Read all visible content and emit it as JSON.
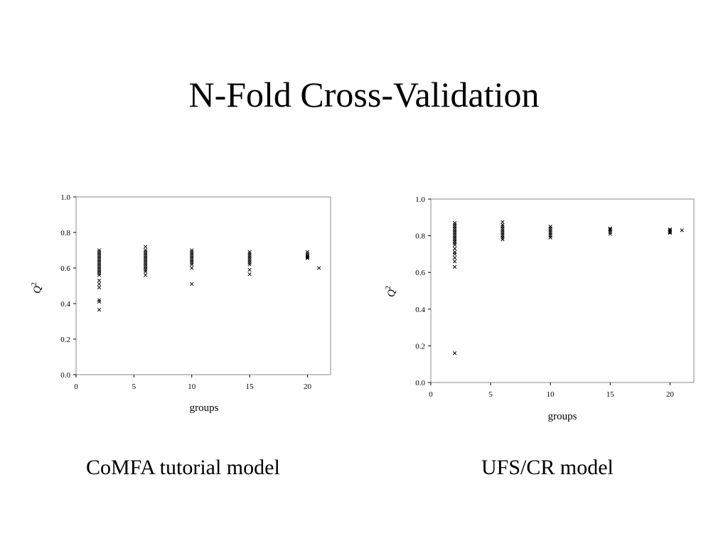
{
  "slide": {
    "title": "N-Fold Cross-Validation",
    "captions": [
      "CoMFA tutorial model",
      "UFS/CR model"
    ]
  },
  "chart_data": [
    {
      "type": "scatter",
      "marker": "x",
      "xlabel": "groups",
      "ylabel": "Q",
      "ylabel_superscript": "2",
      "xlim": [
        0,
        22
      ],
      "ylim": [
        0,
        1
      ],
      "x_ticks": [
        0,
        5,
        10,
        15,
        20
      ],
      "y_ticks": [
        "0.0",
        "0.2",
        "0.4",
        "0.6",
        "0.8",
        "1.0"
      ],
      "grid": false,
      "series": [
        {
          "points": [
            [
              2,
              0.7
            ],
            [
              2,
              0.69
            ],
            [
              2,
              0.68
            ],
            [
              2,
              0.67
            ],
            [
              2,
              0.66
            ],
            [
              2,
              0.65
            ],
            [
              2,
              0.64
            ],
            [
              2,
              0.63
            ],
            [
              2,
              0.62
            ],
            [
              2,
              0.61
            ],
            [
              2,
              0.6
            ],
            [
              2,
              0.59
            ],
            [
              2,
              0.58
            ],
            [
              2,
              0.57
            ],
            [
              2,
              0.56
            ],
            [
              2,
              0.53
            ],
            [
              2,
              0.51
            ],
            [
              2,
              0.49
            ],
            [
              2,
              0.42
            ],
            [
              2,
              0.41
            ],
            [
              2,
              0.365
            ],
            [
              6,
              0.72
            ],
            [
              6,
              0.7
            ],
            [
              6,
              0.69
            ],
            [
              6,
              0.68
            ],
            [
              6,
              0.67
            ],
            [
              6,
              0.66
            ],
            [
              6,
              0.65
            ],
            [
              6,
              0.64
            ],
            [
              6,
              0.63
            ],
            [
              6,
              0.62
            ],
            [
              6,
              0.61
            ],
            [
              6,
              0.6
            ],
            [
              6,
              0.59
            ],
            [
              6,
              0.58
            ],
            [
              6,
              0.56
            ],
            [
              10,
              0.7
            ],
            [
              10,
              0.69
            ],
            [
              10,
              0.68
            ],
            [
              10,
              0.67
            ],
            [
              10,
              0.66
            ],
            [
              10,
              0.65
            ],
            [
              10,
              0.64
            ],
            [
              10,
              0.63
            ],
            [
              10,
              0.62
            ],
            [
              10,
              0.6
            ],
            [
              10,
              0.51
            ],
            [
              15,
              0.69
            ],
            [
              15,
              0.68
            ],
            [
              15,
              0.67
            ],
            [
              15,
              0.66
            ],
            [
              15,
              0.65
            ],
            [
              15,
              0.64
            ],
            [
              15,
              0.63
            ],
            [
              15,
              0.62
            ],
            [
              15,
              0.59
            ],
            [
              15,
              0.565
            ],
            [
              20,
              0.69
            ],
            [
              20,
              0.68
            ],
            [
              20,
              0.67
            ],
            [
              20,
              0.665
            ],
            [
              20,
              0.66
            ],
            [
              20,
              0.655
            ],
            [
              21,
              0.6
            ]
          ]
        }
      ]
    },
    {
      "type": "scatter",
      "marker": "x",
      "xlabel": "groups",
      "ylabel": "Q",
      "ylabel_superscript": "2",
      "xlim": [
        0,
        22
      ],
      "ylim": [
        0,
        1
      ],
      "x_ticks": [
        0,
        5,
        10,
        15,
        20
      ],
      "y_ticks": [
        "0.0",
        "0.2",
        "0.4",
        "0.6",
        "0.8",
        "1.0"
      ],
      "grid": false,
      "series": [
        {
          "points": [
            [
              2,
              0.87
            ],
            [
              2,
              0.86
            ],
            [
              2,
              0.85
            ],
            [
              2,
              0.84
            ],
            [
              2,
              0.83
            ],
            [
              2,
              0.82
            ],
            [
              2,
              0.81
            ],
            [
              2,
              0.8
            ],
            [
              2,
              0.79
            ],
            [
              2,
              0.78
            ],
            [
              2,
              0.77
            ],
            [
              2,
              0.76
            ],
            [
              2,
              0.75
            ],
            [
              2,
              0.73
            ],
            [
              2,
              0.71
            ],
            [
              2,
              0.7
            ],
            [
              2,
              0.68
            ],
            [
              2,
              0.66
            ],
            [
              2,
              0.63
            ],
            [
              2,
              0.16
            ],
            [
              6,
              0.875
            ],
            [
              6,
              0.86
            ],
            [
              6,
              0.85
            ],
            [
              6,
              0.84
            ],
            [
              6,
              0.83
            ],
            [
              6,
              0.82
            ],
            [
              6,
              0.81
            ],
            [
              6,
              0.8
            ],
            [
              6,
              0.79
            ],
            [
              6,
              0.78
            ],
            [
              10,
              0.85
            ],
            [
              10,
              0.84
            ],
            [
              10,
              0.83
            ],
            [
              10,
              0.82
            ],
            [
              10,
              0.81
            ],
            [
              10,
              0.8
            ],
            [
              10,
              0.79
            ],
            [
              15,
              0.84
            ],
            [
              15,
              0.835
            ],
            [
              15,
              0.83
            ],
            [
              15,
              0.82
            ],
            [
              15,
              0.81
            ],
            [
              20,
              0.835
            ],
            [
              20,
              0.83
            ],
            [
              20,
              0.825
            ],
            [
              20,
              0.82
            ],
            [
              20,
              0.815
            ],
            [
              21,
              0.83
            ]
          ]
        }
      ]
    }
  ]
}
